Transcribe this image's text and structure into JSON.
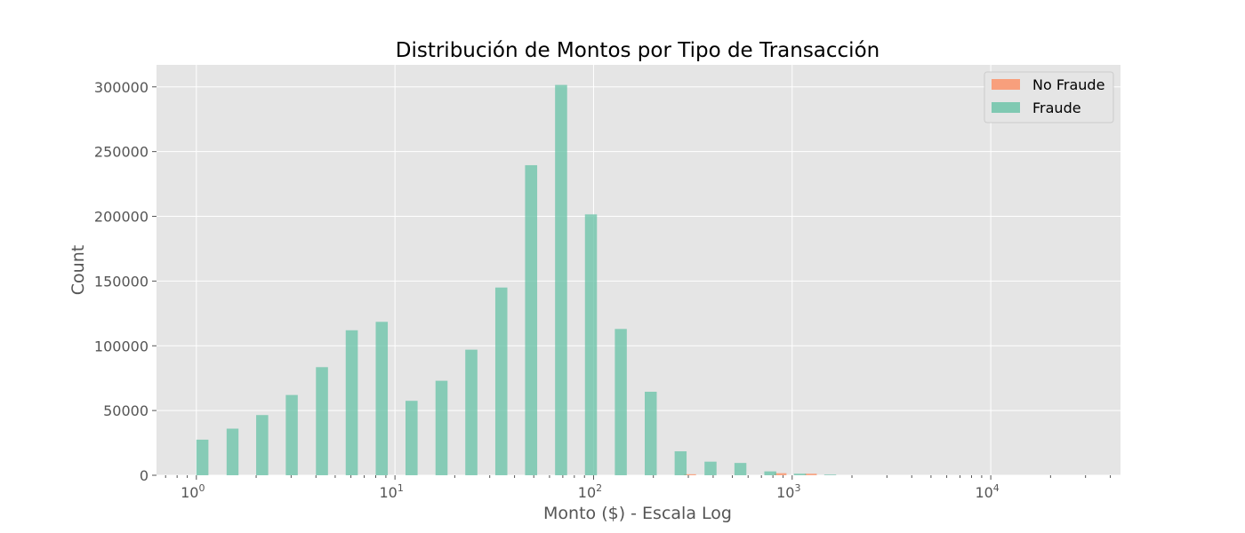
{
  "chart_data": {
    "type": "bar",
    "title": "Distribución de Montos por Tipo de Transacción",
    "xlabel": "Monto ($) - Escala Log",
    "ylabel": "Count",
    "xscale": "log",
    "xlim": [
      0.63,
      45000
    ],
    "ylim": [
      0,
      317000
    ],
    "yticks": [
      0,
      50000,
      100000,
      150000,
      200000,
      250000,
      300000
    ],
    "xticks": [
      {
        "value": 1,
        "base": "10",
        "exp": "0"
      },
      {
        "value": 10,
        "base": "10",
        "exp": "1"
      },
      {
        "value": 100,
        "base": "10",
        "exp": "2"
      },
      {
        "value": 1000,
        "base": "10",
        "exp": "3"
      },
      {
        "value": 10000,
        "base": "10",
        "exp": "4"
      }
    ],
    "grid": true,
    "legend_position": "top-right",
    "series": [
      {
        "name": "No Fraude",
        "color": "#fc8d62",
        "bins": [
          {
            "x0": 1.0,
            "x1": 1.15,
            "value": 0
          },
          {
            "x0": 1.5,
            "x1": 1.72,
            "value": 0
          },
          {
            "x0": 2.1,
            "x1": 2.42,
            "value": 0
          },
          {
            "x0": 2.9,
            "x1": 3.34,
            "value": 0
          },
          {
            "x0": 4.1,
            "x1": 4.7,
            "value": 0
          },
          {
            "x0": 5.8,
            "x1": 6.65,
            "value": 0
          },
          {
            "x0": 8.2,
            "x1": 9.4,
            "value": 0
          },
          {
            "x0": 11.3,
            "x1": 13.0,
            "value": 0
          },
          {
            "x0": 16.0,
            "x1": 18.4,
            "value": 0
          },
          {
            "x0": 22.5,
            "x1": 25.9,
            "value": 0
          },
          {
            "x0": 31.5,
            "x1": 36.2,
            "value": 0
          },
          {
            "x0": 44.5,
            "x1": 51.1,
            "value": 0
          },
          {
            "x0": 62.5,
            "x1": 71.8,
            "value": 0
          },
          {
            "x0": 87.5,
            "x1": 100.5,
            "value": 0
          },
          {
            "x0": 123,
            "x1": 141,
            "value": 0
          },
          {
            "x0": 174,
            "x1": 200,
            "value": 0
          },
          {
            "x0": 285,
            "x1": 328,
            "value": 800
          },
          {
            "x0": 815,
            "x1": 936,
            "value": 1600
          },
          {
            "x0": 1160,
            "x1": 1330,
            "value": 1200
          }
        ]
      },
      {
        "name": "Fraude",
        "color": "#66c2a5",
        "bins": [
          {
            "x0": 1.0,
            "x1": 1.15,
            "value": 27500
          },
          {
            "x0": 1.42,
            "x1": 1.63,
            "value": 36000
          },
          {
            "x0": 2.0,
            "x1": 2.3,
            "value": 46500
          },
          {
            "x0": 2.82,
            "x1": 3.24,
            "value": 62000
          },
          {
            "x0": 4.0,
            "x1": 4.6,
            "value": 83500
          },
          {
            "x0": 5.65,
            "x1": 6.5,
            "value": 112000
          },
          {
            "x0": 8.0,
            "x1": 9.2,
            "value": 118500
          },
          {
            "x0": 11.3,
            "x1": 13.0,
            "value": 57500
          },
          {
            "x0": 16.0,
            "x1": 18.4,
            "value": 73000
          },
          {
            "x0": 22.6,
            "x1": 26.0,
            "value": 97000
          },
          {
            "x0": 32.0,
            "x1": 36.8,
            "value": 145000
          },
          {
            "x0": 45.2,
            "x1": 52.0,
            "value": 239500
          },
          {
            "x0": 64.0,
            "x1": 73.6,
            "value": 301500
          },
          {
            "x0": 90.5,
            "x1": 104,
            "value": 201500
          },
          {
            "x0": 128,
            "x1": 147,
            "value": 113000
          },
          {
            "x0": 181,
            "x1": 208,
            "value": 64500
          },
          {
            "x0": 256,
            "x1": 294,
            "value": 18500
          },
          {
            "x0": 362,
            "x1": 416,
            "value": 10500
          },
          {
            "x0": 512,
            "x1": 588,
            "value": 9500
          },
          {
            "x0": 724,
            "x1": 832,
            "value": 3000
          },
          {
            "x0": 1020,
            "x1": 1175,
            "value": 1200
          },
          {
            "x0": 1450,
            "x1": 1665,
            "value": 500
          }
        ]
      }
    ]
  }
}
